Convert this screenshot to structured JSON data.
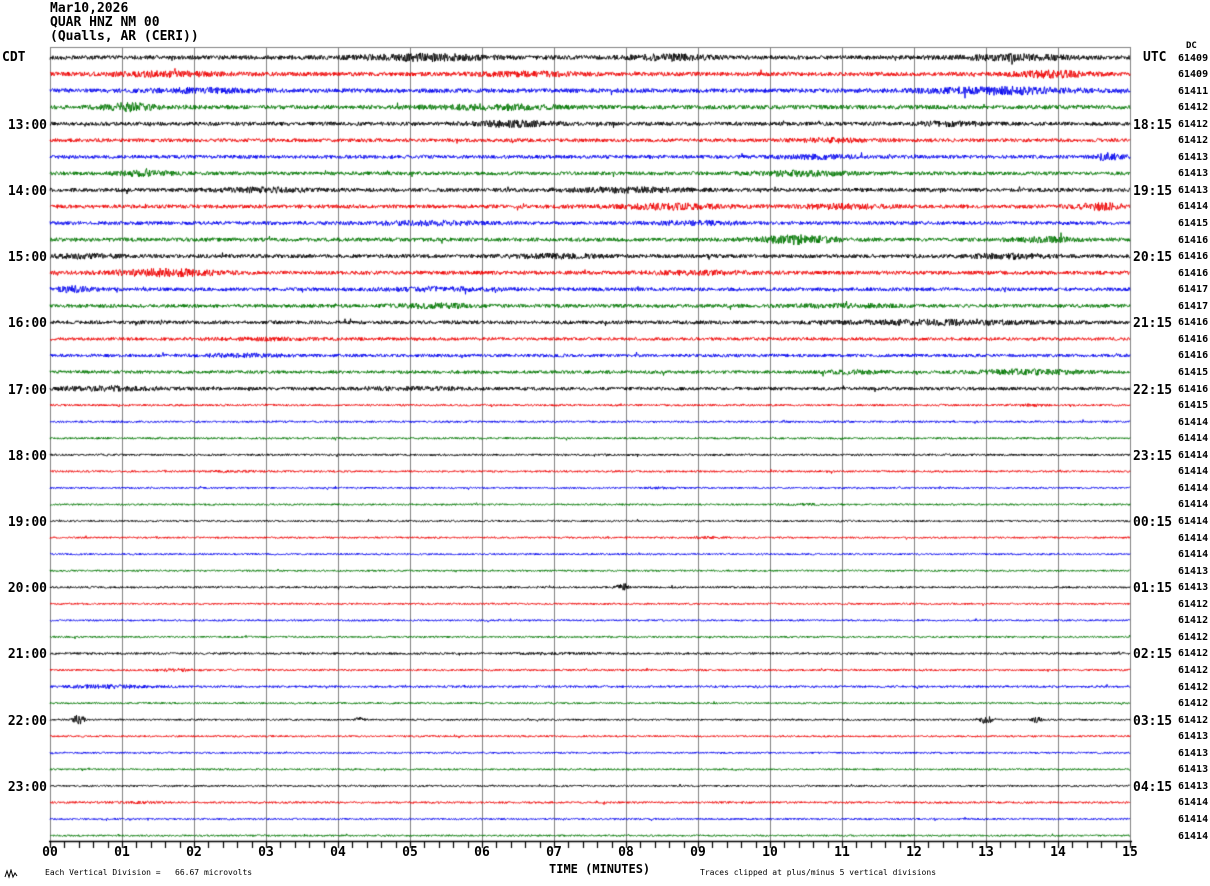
{
  "header": {
    "date": "Mar10,2026",
    "station": "QUAR HNZ NM 00",
    "site": "(Qualls, AR (CERI))"
  },
  "axes": {
    "left_timezone": "CDT",
    "right_timezone": "UTC",
    "dc_label": "DC",
    "x_title": "TIME (MINUTES)",
    "x_tick_labels": [
      "00",
      "01",
      "02",
      "03",
      "04",
      "05",
      "06",
      "07",
      "08",
      "09",
      "10",
      "11",
      "12",
      "13",
      "14",
      "15"
    ],
    "left_hour_labels": [
      {
        "row": 4,
        "label": "13:00"
      },
      {
        "row": 8,
        "label": "14:00"
      },
      {
        "row": 12,
        "label": "15:00"
      },
      {
        "row": 16,
        "label": "16:00"
      },
      {
        "row": 20,
        "label": "17:00"
      },
      {
        "row": 24,
        "label": "18:00"
      },
      {
        "row": 28,
        "label": "19:00"
      },
      {
        "row": 32,
        "label": "20:00"
      },
      {
        "row": 36,
        "label": "21:00"
      },
      {
        "row": 40,
        "label": "22:00"
      },
      {
        "row": 44,
        "label": "23:00"
      }
    ],
    "right_hour_labels": [
      {
        "row": 4,
        "label": "18:15"
      },
      {
        "row": 8,
        "label": "19:15"
      },
      {
        "row": 12,
        "label": "20:15"
      },
      {
        "row": 16,
        "label": "21:15"
      },
      {
        "row": 20,
        "label": "22:15"
      },
      {
        "row": 24,
        "label": "23:15"
      },
      {
        "row": 28,
        "label": "00:15"
      },
      {
        "row": 32,
        "label": "01:15"
      },
      {
        "row": 36,
        "label": "02:15"
      },
      {
        "row": 40,
        "label": "03:15"
      },
      {
        "row": 44,
        "label": "04:15"
      }
    ]
  },
  "footer": {
    "scale_note": "Each Vertical Division =   66.67 microvolts",
    "clip_note": "Traces clipped at plus/minus 5 vertical divisions"
  },
  "colors": {
    "trace_cycle": [
      "#000000",
      "#ee0000",
      "#0000ee",
      "#007700"
    ],
    "grid": "#808080",
    "axis": "#000000",
    "background": "#ffffff"
  },
  "chart_data": {
    "type": "line",
    "title": "Helicorder seismogram QUAR HNZ NM 00 (Qualls, AR (CERI)) Mar10,2026",
    "x_axis": {
      "label": "TIME (MINUTES)",
      "range": [
        0,
        15
      ],
      "major_tick_every": 1,
      "minor_ticks_per_major": 5,
      "grid": "vertical-only"
    },
    "minutes_per_row": 15,
    "row_color_cycle": [
      "black",
      "red",
      "blue",
      "green"
    ],
    "clip_divisions": 5,
    "microvolts_per_division": "66.67",
    "rows": [
      {
        "cdt_start": "12:00",
        "dc": 61409,
        "amp": 2.1,
        "bursts": [
          [
            5.2,
            1.2,
            0.6
          ],
          [
            8.6,
            1.0,
            0.4
          ],
          [
            13.4,
            1.0,
            0.5
          ]
        ]
      },
      {
        "cdt_start": "12:15",
        "dc": 61409,
        "amp": 2.1,
        "bursts": [
          [
            1.6,
            0.8,
            0.5
          ],
          [
            6.6,
            0.7,
            0.5
          ],
          [
            13.9,
            1.2,
            0.35
          ]
        ]
      },
      {
        "cdt_start": "12:30",
        "dc": 61411,
        "amp": 2.1,
        "bursts": [
          [
            2.1,
            0.7,
            0.5
          ],
          [
            13.2,
            1.3,
            0.7
          ]
        ]
      },
      {
        "cdt_start": "12:45",
        "dc": 61412,
        "amp": 2.1,
        "bursts": [
          [
            1.1,
            1.5,
            0.25
          ],
          [
            6.2,
            0.8,
            0.6
          ]
        ]
      },
      {
        "cdt_start": "13:00",
        "dc": 61412,
        "amp": 1.9,
        "bursts": [
          [
            6.4,
            1.2,
            0.4
          ],
          [
            12.5,
            0.8,
            0.3
          ]
        ]
      },
      {
        "cdt_start": "13:15",
        "dc": 61412,
        "amp": 1.8,
        "bursts": [
          [
            10.9,
            0.7,
            0.4
          ]
        ]
      },
      {
        "cdt_start": "13:30",
        "dc": 61413,
        "amp": 1.8,
        "bursts": [
          [
            10.6,
            0.8,
            0.4
          ],
          [
            14.7,
            1.5,
            0.15
          ]
        ]
      },
      {
        "cdt_start": "13:45",
        "dc": 61413,
        "amp": 1.8,
        "bursts": [
          [
            1.3,
            0.9,
            0.3
          ],
          [
            10.4,
            1.0,
            0.5
          ]
        ]
      },
      {
        "cdt_start": "14:00",
        "dc": 61413,
        "amp": 1.9,
        "bursts": [
          [
            3.0,
            0.8,
            0.5
          ],
          [
            8.0,
            0.9,
            0.6
          ]
        ]
      },
      {
        "cdt_start": "14:15",
        "dc": 61414,
        "amp": 1.9,
        "bursts": [
          [
            8.6,
            1.1,
            0.5
          ],
          [
            11.0,
            0.9,
            0.4
          ],
          [
            14.6,
            1.3,
            0.25
          ]
        ]
      },
      {
        "cdt_start": "14:30",
        "dc": 61415,
        "amp": 1.8,
        "bursts": [
          [
            5.3,
            0.8,
            0.5
          ],
          [
            9.0,
            0.7,
            0.4
          ]
        ]
      },
      {
        "cdt_start": "14:45",
        "dc": 61416,
        "amp": 1.9,
        "bursts": [
          [
            10.4,
            1.9,
            0.35
          ],
          [
            13.8,
            1.0,
            0.3
          ]
        ]
      },
      {
        "cdt_start": "15:00",
        "dc": 61416,
        "amp": 1.9,
        "bursts": [
          [
            0.5,
            0.8,
            0.3
          ],
          [
            7.0,
            0.7,
            0.5
          ],
          [
            13.3,
            0.9,
            0.4
          ]
        ]
      },
      {
        "cdt_start": "15:15",
        "dc": 61416,
        "amp": 1.9,
        "bursts": [
          [
            1.6,
            1.5,
            0.5
          ],
          [
            9.0,
            0.6,
            0.5
          ]
        ]
      },
      {
        "cdt_start": "15:30",
        "dc": 61417,
        "amp": 1.8,
        "bursts": [
          [
            0.3,
            1.2,
            0.2
          ],
          [
            5.4,
            0.8,
            0.5
          ]
        ]
      },
      {
        "cdt_start": "15:45",
        "dc": 61417,
        "amp": 1.8,
        "bursts": [
          [
            5.3,
            0.9,
            0.4
          ],
          [
            11.0,
            0.6,
            0.5
          ]
        ]
      },
      {
        "cdt_start": "16:00",
        "dc": 61416,
        "amp": 1.8,
        "bursts": [
          [
            12.4,
            1.0,
            0.9
          ]
        ]
      },
      {
        "cdt_start": "16:15",
        "dc": 61416,
        "amp": 1.6,
        "bursts": [
          [
            3.0,
            0.5,
            0.5
          ]
        ]
      },
      {
        "cdt_start": "16:30",
        "dc": 61416,
        "amp": 1.6,
        "bursts": [
          [
            2.7,
            0.7,
            0.4
          ]
        ]
      },
      {
        "cdt_start": "16:45",
        "dc": 61415,
        "amp": 1.6,
        "bursts": [
          [
            11.2,
            0.8,
            0.3
          ],
          [
            13.6,
            1.3,
            0.5
          ]
        ]
      },
      {
        "cdt_start": "17:00",
        "dc": 61416,
        "amp": 1.7,
        "bursts": [
          [
            0.8,
            0.9,
            0.5
          ],
          [
            5.0,
            0.5,
            0.5
          ]
        ]
      },
      {
        "cdt_start": "17:15",
        "dc": 61415,
        "amp": 1.0,
        "bursts": [
          [
            13.6,
            0.8,
            0.2
          ]
        ]
      },
      {
        "cdt_start": "17:30",
        "dc": 61414,
        "amp": 1.0,
        "bursts": []
      },
      {
        "cdt_start": "17:45",
        "dc": 61414,
        "amp": 1.0,
        "bursts": []
      },
      {
        "cdt_start": "18:00",
        "dc": 61414,
        "amp": 1.0,
        "bursts": []
      },
      {
        "cdt_start": "18:15",
        "dc": 61414,
        "amp": 1.0,
        "bursts": [
          [
            2.5,
            0.6,
            0.2
          ]
        ]
      },
      {
        "cdt_start": "18:30",
        "dc": 61414,
        "amp": 0.9,
        "bursts": [
          [
            8.5,
            0.7,
            0.15
          ]
        ]
      },
      {
        "cdt_start": "18:45",
        "dc": 61414,
        "amp": 0.9,
        "bursts": [
          [
            10.5,
            0.8,
            0.2
          ]
        ]
      },
      {
        "cdt_start": "19:00",
        "dc": 61414,
        "amp": 0.9,
        "bursts": []
      },
      {
        "cdt_start": "19:15",
        "dc": 61414,
        "amp": 0.9,
        "bursts": [
          [
            9.1,
            0.8,
            0.15
          ]
        ]
      },
      {
        "cdt_start": "19:30",
        "dc": 61414,
        "amp": 0.9,
        "bursts": []
      },
      {
        "cdt_start": "19:45",
        "dc": 61413,
        "amp": 0.9,
        "bursts": []
      },
      {
        "cdt_start": "20:00",
        "dc": 61413,
        "amp": 1.0,
        "bursts": [
          [
            7.95,
            4.0,
            0.05
          ]
        ]
      },
      {
        "cdt_start": "20:15",
        "dc": 61412,
        "amp": 0.9,
        "bursts": []
      },
      {
        "cdt_start": "20:30",
        "dc": 61412,
        "amp": 0.9,
        "bursts": []
      },
      {
        "cdt_start": "20:45",
        "dc": 61412,
        "amp": 0.9,
        "bursts": []
      },
      {
        "cdt_start": "21:00",
        "dc": 61412,
        "amp": 1.1,
        "bursts": [
          [
            7.0,
            0.5,
            0.4
          ]
        ]
      },
      {
        "cdt_start": "21:15",
        "dc": 61412,
        "amp": 1.0,
        "bursts": [
          [
            1.7,
            1.0,
            0.2
          ]
        ]
      },
      {
        "cdt_start": "21:30",
        "dc": 61412,
        "amp": 1.1,
        "bursts": [
          [
            0.8,
            1.2,
            0.4
          ]
        ]
      },
      {
        "cdt_start": "21:45",
        "dc": 61412,
        "amp": 0.9,
        "bursts": []
      },
      {
        "cdt_start": "22:00",
        "dc": 61412,
        "amp": 0.9,
        "bursts": [
          [
            0.4,
            6.0,
            0.05
          ],
          [
            4.3,
            3.0,
            0.04
          ],
          [
            13.0,
            3.5,
            0.07
          ],
          [
            13.7,
            2.5,
            0.05
          ]
        ]
      },
      {
        "cdt_start": "22:15",
        "dc": 61413,
        "amp": 0.9,
        "bursts": []
      },
      {
        "cdt_start": "22:30",
        "dc": 61413,
        "amp": 0.9,
        "bursts": []
      },
      {
        "cdt_start": "22:45",
        "dc": 61413,
        "amp": 0.9,
        "bursts": []
      },
      {
        "cdt_start": "23:00",
        "dc": 61413,
        "amp": 0.9,
        "bursts": []
      },
      {
        "cdt_start": "23:15",
        "dc": 61414,
        "amp": 1.0,
        "bursts": [
          [
            1.2,
            0.6,
            0.3
          ]
        ]
      },
      {
        "cdt_start": "23:30",
        "dc": 61414,
        "amp": 0.9,
        "bursts": []
      },
      {
        "cdt_start": "23:45",
        "dc": 61414,
        "amp": 0.9,
        "bursts": []
      }
    ]
  }
}
